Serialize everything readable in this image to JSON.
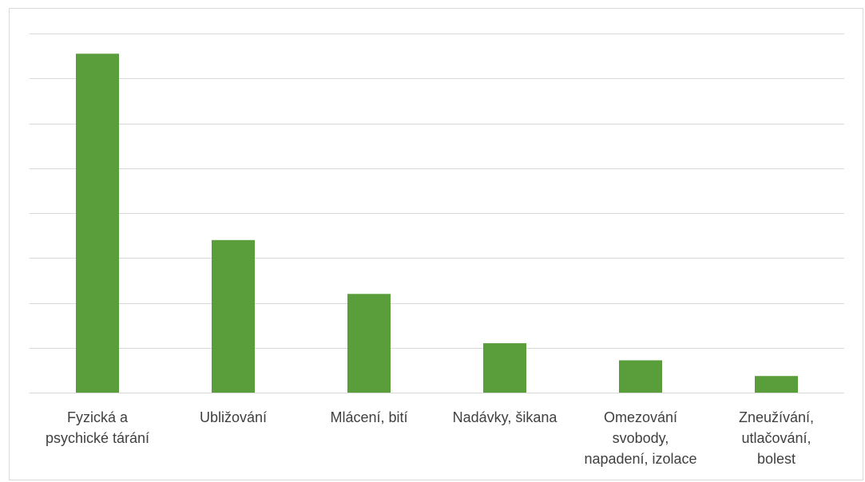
{
  "chart_data": {
    "type": "bar",
    "title": "",
    "xlabel": "",
    "ylabel": "",
    "categories": [
      [
        "Fyzická a",
        "psychické tárání"
      ],
      [
        "Ubližování"
      ],
      [
        "Mlácení, bití"
      ],
      [
        "Nadávky, šikana"
      ],
      [
        "Omezování",
        "svobody,",
        "napadení, izolace"
      ],
      [
        "Zneužívání,",
        "utlačování,",
        "bolest"
      ]
    ],
    "values": [
      7.55,
      3.4,
      2.2,
      1.1,
      0.72,
      0.37
    ],
    "ylim": [
      0,
      8
    ],
    "grid": true,
    "legend": "none",
    "colors": {
      "bar": "#5a9e3b",
      "grid": "#d9d9d9",
      "axis": "#d9d9d9",
      "text": "#404040"
    }
  }
}
